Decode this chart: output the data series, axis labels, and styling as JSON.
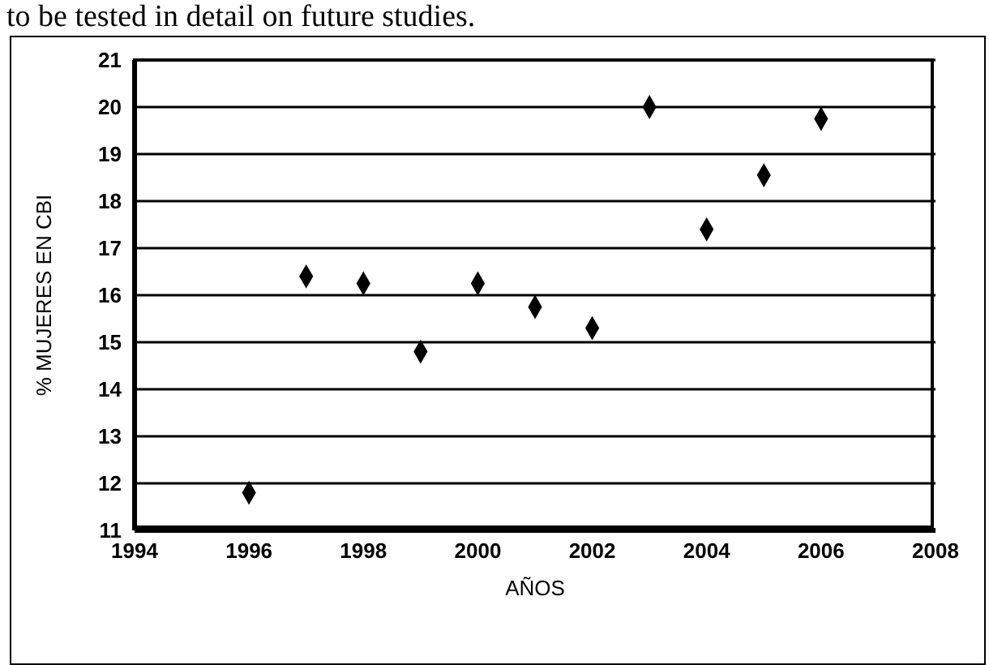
{
  "chart_data": {
    "type": "scatter",
    "xlabel": "AÑOS",
    "ylabel": "% MUJERES EN CBI",
    "annotations": [
      "to be tested in detail on future studies."
    ],
    "x": [
      1996,
      1997,
      1998,
      1999,
      2000,
      2001,
      2002,
      2003,
      2004,
      2005,
      2006
    ],
    "series": [
      {
        "color": "#000000",
        "values": [
          11.8,
          16.4,
          16.25,
          14.8,
          16.25,
          15.75,
          15.3,
          20.0,
          17.4,
          18.55,
          19.75
        ]
      }
    ],
    "xlim": [
      1994,
      2008
    ],
    "xticks": [
      1994,
      1996,
      1998,
      2000,
      2002,
      2004,
      2006,
      2008
    ],
    "ylim": [
      11,
      21
    ],
    "yticks": [
      11,
      12,
      13,
      14,
      15,
      16,
      17,
      18,
      19,
      20,
      21
    ],
    "grid": "y",
    "marker": "diamond",
    "legend": false
  }
}
